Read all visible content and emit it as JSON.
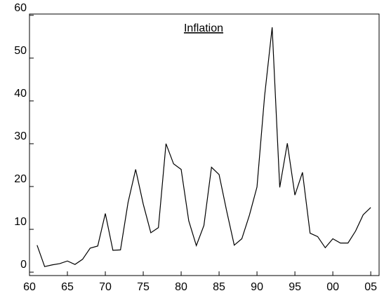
{
  "chart_data": {
    "type": "line",
    "title": "Inflation",
    "x": [
      1961,
      1962,
      1963,
      1964,
      1965,
      1966,
      1967,
      1968,
      1969,
      1970,
      1971,
      1972,
      1973,
      1974,
      1975,
      1976,
      1977,
      1978,
      1979,
      1980,
      1981,
      1982,
      1983,
      1984,
      1985,
      1986,
      1987,
      1988,
      1989,
      1990,
      1991,
      1992,
      1993,
      1994,
      1995,
      1996,
      1997,
      1998,
      1999,
      2000,
      2001,
      2002,
      2003,
      2004,
      2005
    ],
    "series": [
      {
        "name": "Inflation",
        "color": "#000000",
        "values": [
          6.3,
          1.3,
          1.7,
          2.0,
          2.6,
          1.8,
          3.0,
          5.6,
          6.1,
          13.7,
          5.1,
          5.2,
          16.3,
          24.0,
          15.9,
          9.2,
          10.4,
          30.0,
          25.3,
          24.0,
          12.0,
          6.2,
          10.9,
          24.5,
          22.8,
          14.3,
          6.3,
          7.8,
          13.3,
          19.9,
          41.1,
          57.2,
          19.8,
          30.1,
          18.0,
          23.3,
          9.1,
          8.3,
          5.7,
          7.8,
          6.8,
          6.8,
          9.6,
          13.4,
          15.1
        ]
      }
    ],
    "xlim": [
      1960,
      2006.1
    ],
    "xticks": [
      {
        "value": 1960,
        "label": "60"
      },
      {
        "value": 1965,
        "label": "65"
      },
      {
        "value": 1970,
        "label": "70"
      },
      {
        "value": 1975,
        "label": "75"
      },
      {
        "value": 1980,
        "label": "80"
      },
      {
        "value": 1985,
        "label": "85"
      },
      {
        "value": 1990,
        "label": "90"
      },
      {
        "value": 1995,
        "label": "95"
      },
      {
        "value": 2000,
        "label": "00"
      },
      {
        "value": 2005,
        "label": "05"
      }
    ],
    "ylim": [
      -0.8,
      60.3
    ],
    "yticks": [
      0,
      10,
      20,
      30,
      40,
      50,
      60
    ]
  }
}
